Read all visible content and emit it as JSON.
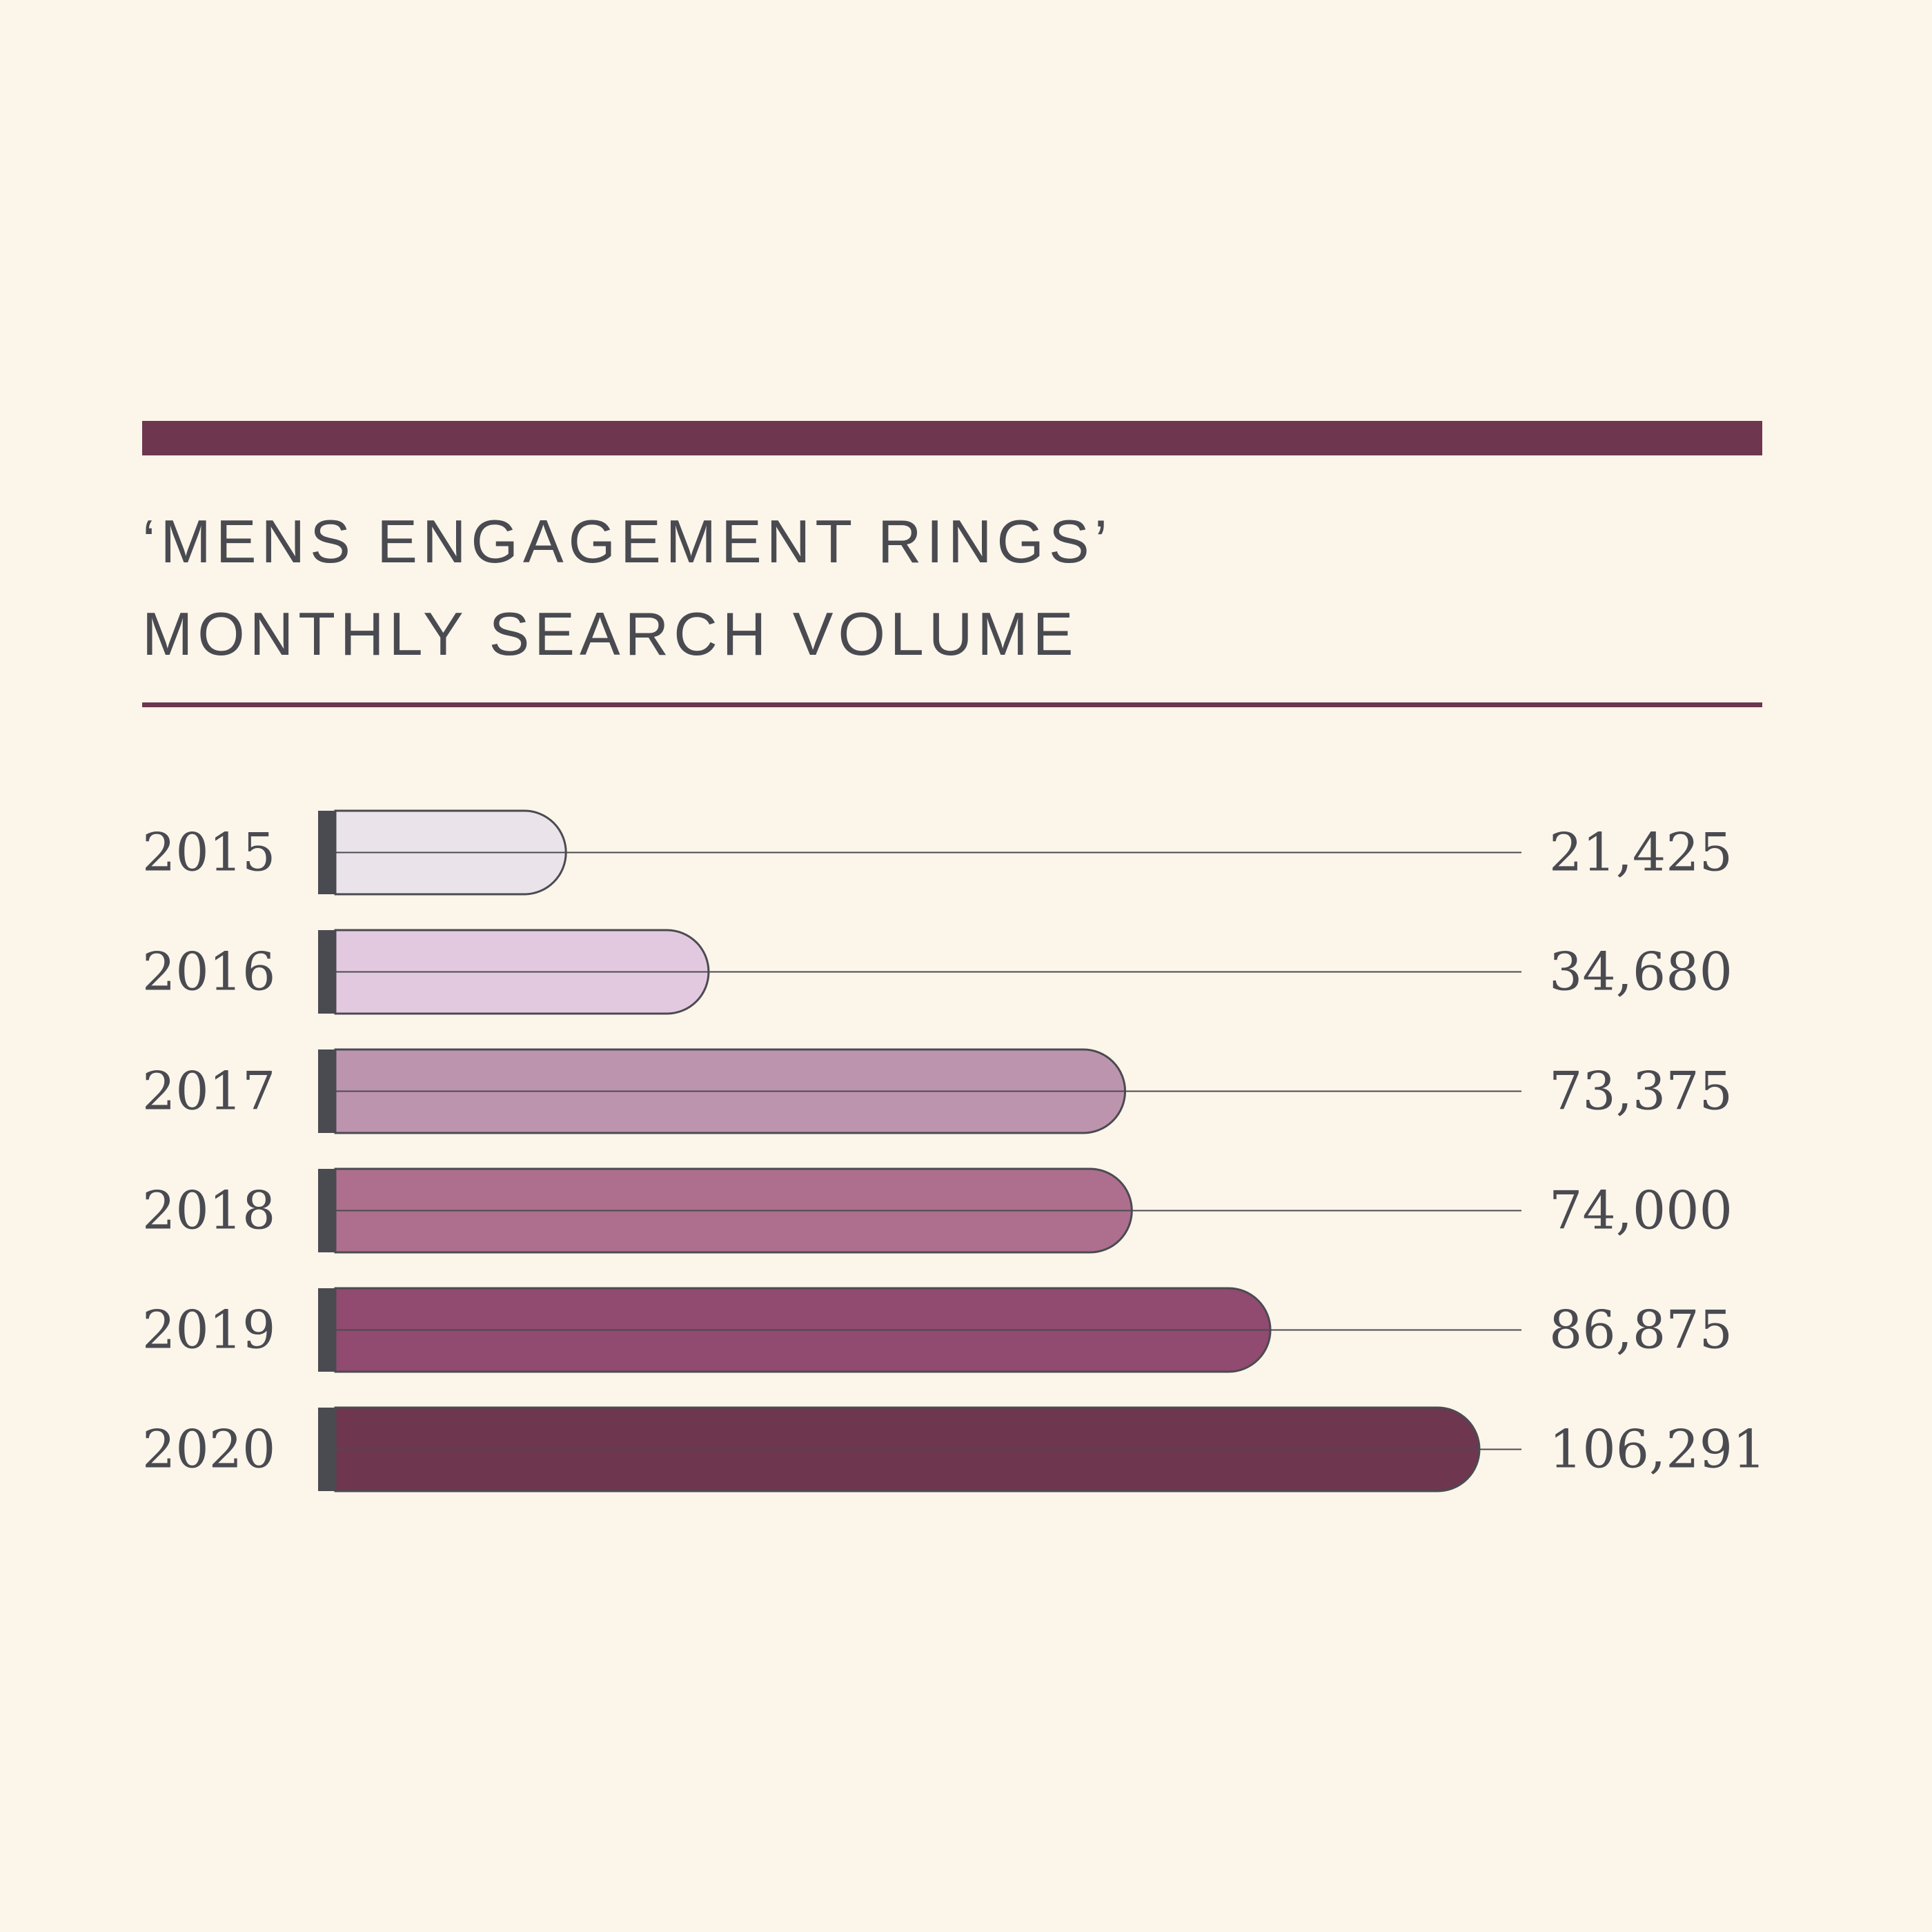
{
  "title_lines": [
    "‘MENS ENGAGEMENT RINGS’",
    "MONTHLY SEARCH VOLUME"
  ],
  "chart_data": {
    "type": "bar",
    "orientation": "horizontal",
    "categories": [
      "2015",
      "2016",
      "2017",
      "2018",
      "2019",
      "2020"
    ],
    "values": [
      21425,
      34680,
      73375,
      74000,
      86875,
      106291
    ],
    "value_labels": [
      "21,425",
      "34,680",
      "73,375",
      "74,000",
      "86,875",
      "106,291"
    ],
    "bar_colors": [
      "#ebe3ea",
      "#e3c9df",
      "#bd94ae",
      "#ad6f8d",
      "#914a70",
      "#6e364f"
    ],
    "xlim": [
      0,
      106291
    ],
    "grid": false,
    "legend": "none"
  },
  "colors": {
    "background": "#fcf5ea",
    "accent": "#6e364f",
    "text": "#4a4b51"
  }
}
